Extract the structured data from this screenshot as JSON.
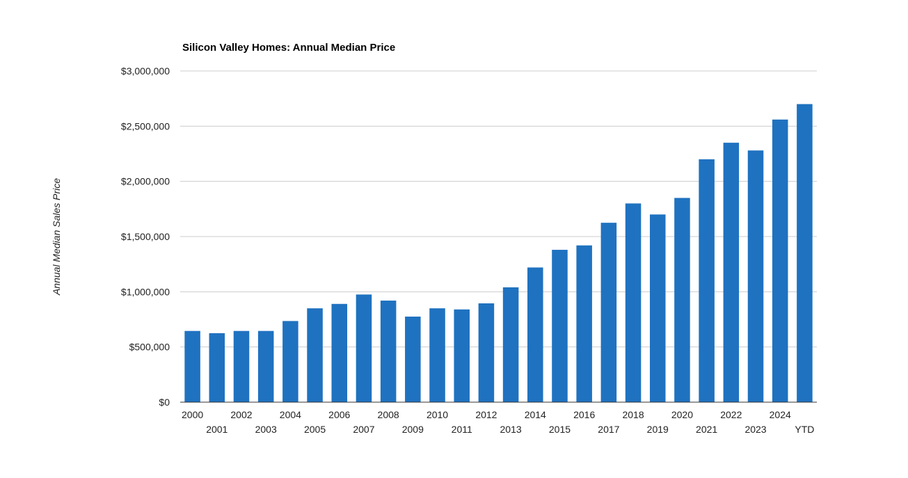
{
  "chart_data": {
    "type": "bar",
    "title": "Silicon Valley Homes: Annual Median Price",
    "xlabel": "",
    "ylabel": "Annual Median Sales Price",
    "ylim": [
      0,
      3000000
    ],
    "y_ticks": [
      "$0",
      "$500,000",
      "$1,000,000",
      "$1,500,000",
      "$2,000,000",
      "$2,500,000",
      "$3,000,000"
    ],
    "y_tick_values": [
      0,
      500000,
      1000000,
      1500000,
      2000000,
      2500000,
      3000000
    ],
    "grid": true,
    "bar_color": "#1f72c0",
    "categories": [
      "2000",
      "2001",
      "2002",
      "2003",
      "2004",
      "2005",
      "2006",
      "2007",
      "2008",
      "2009",
      "2010",
      "2011",
      "2012",
      "2013",
      "2014",
      "2015",
      "2016",
      "2017",
      "2018",
      "2019",
      "2020",
      "2021",
      "2022",
      "2023",
      "2024",
      "YTD"
    ],
    "values": [
      645000,
      625000,
      645000,
      645000,
      735000,
      850000,
      890000,
      975000,
      920000,
      775000,
      850000,
      840000,
      895000,
      1040000,
      1220000,
      1380000,
      1420000,
      1625000,
      1800000,
      1700000,
      1850000,
      2200000,
      2350000,
      2280000,
      2560000,
      2700000
    ]
  }
}
